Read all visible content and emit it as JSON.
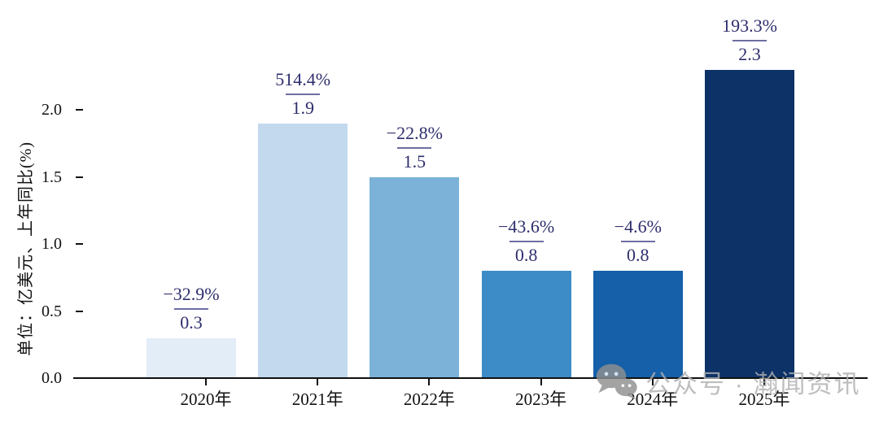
{
  "chart_data": {
    "type": "bar",
    "title": "",
    "ylabel": "单位：亿美元、上年同比(%)",
    "xlabel": "",
    "categories": [
      "2020年",
      "2021年",
      "2022年",
      "2023年",
      "2024年",
      "2025年"
    ],
    "values": [
      0.3,
      1.9,
      1.5,
      0.8,
      0.8,
      2.3
    ],
    "value_labels": [
      "0.3",
      "1.9",
      "1.5",
      "0.8",
      "0.8",
      "2.3"
    ],
    "growth_labels": [
      "−32.9%",
      "514.4%",
      "−22.8%",
      "−43.6%",
      "−4.6%",
      "193.3%"
    ],
    "ytick_labels": [
      "0.0",
      "0.5",
      "1.0",
      "1.5",
      "2.0"
    ],
    "yticks": [
      0.0,
      0.5,
      1.0,
      1.5,
      2.0
    ],
    "ylim": [
      0,
      2.55
    ],
    "grid": false,
    "legend": "none",
    "bar_colors": [
      "#e3edf8",
      "#c3d9ee",
      "#7cb2d8",
      "#3e8cc7",
      "#1560a8",
      "#0c3268"
    ],
    "annotation_color": "#2e2e6d",
    "fraction_line_color": "#6e6ea2",
    "axis_color": "#111111"
  },
  "watermark": {
    "icon": "wechat-icon",
    "text": "公众号 · 瀚闻资讯",
    "color": "#b0b0b0"
  }
}
